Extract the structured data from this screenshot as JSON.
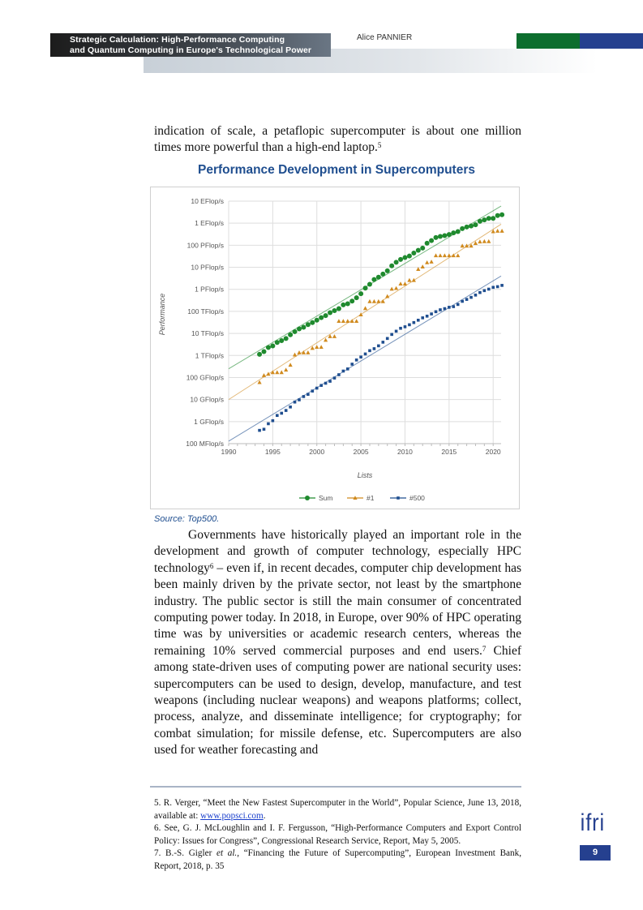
{
  "header": {
    "title_line1": "Strategic Calculation: High-Performance Computing",
    "title_line2": "and Quantum Computing in Europe's Technological Power",
    "author": "Alice PANNIER",
    "colors": {
      "green": "#0d6e2e",
      "blue": "#25408f"
    }
  },
  "intro_paragraph": "indication of scale, a petaflopic supercomputer is about one million times more powerful than a high-end laptop.",
  "intro_footnote_ref": "5",
  "figure": {
    "title": "Performance Development in Supercomputers",
    "source": "Source: Top500."
  },
  "chart_data": {
    "type": "scatter",
    "title": "Performance Development in Supercomputers",
    "xlabel": "Lists",
    "ylabel": "Performance",
    "xlim": [
      1990,
      2021
    ],
    "x_ticks": [
      "1990",
      "1995",
      "2000",
      "2005",
      "2010",
      "2015",
      "2020"
    ],
    "y_scale": "log10 (TFlop/s)",
    "ylim_tflops": [
      0.0001,
      10000000
    ],
    "y_ticks": [
      "10 EFlop/s",
      "1 EFlop/s",
      "100 PFlop/s",
      "10 PFlop/s",
      "1 PFlop/s",
      "100 TFlop/s",
      "10 TFlop/s",
      "1 TFlop/s",
      "100 GFlop/s",
      "10 GFlop/s",
      "1 GFlop/s",
      "100 MFlop/s"
    ],
    "grid": true,
    "legend_position": "bottom",
    "x_start": 1993.5,
    "x_step": 0.5,
    "series": [
      {
        "name": "Sum",
        "color": "#1f8a2e",
        "marker": "circle",
        "values_tflops": [
          1.13,
          1.5,
          2.3,
          2.7,
          3.9,
          4.7,
          5.9,
          8.7,
          12,
          16,
          19,
          25,
          31,
          40,
          52,
          64,
          87,
          108,
          134,
          197,
          223,
          291,
          413,
          630,
          1130,
          1690,
          2790,
          3540,
          4920,
          6960,
          11700,
          16950,
          22600,
          27600,
          32400,
          44200,
          58900,
          74200,
          123000,
          162000,
          223000,
          250000,
          274000,
          308000,
          363000,
          418000,
          567000,
          672000,
          749000,
          845000,
          1220000,
          1410000,
          1650000,
          1650000,
          2220000,
          2430000
        ],
        "trend_tflops": [
          0.25,
          6000000
        ]
      },
      {
        "name": "#1",
        "color": "#d08a1e",
        "marker": "triangle",
        "values_tflops": [
          0.0597,
          0.124,
          0.143,
          0.17,
          0.17,
          0.17,
          0.22,
          0.368,
          1.07,
          1.34,
          1.34,
          1.34,
          2.12,
          2.38,
          2.38,
          4.94,
          7.23,
          7.23,
          35.9,
          35.9,
          35.9,
          35.9,
          35.9,
          70.7,
          136.8,
          280.6,
          280.6,
          280.6,
          280.6,
          478,
          1026,
          1105,
          1759,
          1759,
          2566,
          2566,
          8162,
          10510,
          16320,
          17590,
          33860,
          33860,
          33860,
          33860,
          33860,
          33860,
          93010,
          93010,
          93010,
          122300,
          143500,
          148600,
          148600,
          415500,
          442000,
          442000
        ],
        "trend_tflops": [
          0.01,
          900000
        ]
      },
      {
        "name": "#500",
        "color": "#1f4e8f",
        "marker": "square",
        "values_tflops": [
          0.0004,
          0.00045,
          0.0008,
          0.0011,
          0.0019,
          0.0024,
          0.0032,
          0.0046,
          0.0077,
          0.0097,
          0.0137,
          0.0172,
          0.0243,
          0.033,
          0.0437,
          0.055,
          0.0677,
          0.0945,
          0.134,
          0.196,
          0.245,
          0.403,
          0.624,
          0.85,
          1.17,
          1.65,
          2.03,
          2.74,
          4.0,
          5.9,
          9.0,
          12.6,
          17.1,
          20.0,
          24.7,
          31.1,
          39.8,
          50.9,
          60.8,
          76.5,
          96.6,
          118,
          133,
          153,
          164,
          206,
          286,
          349,
          432,
          548,
          715,
          874,
          1020,
          1230,
          1320,
          1510
        ],
        "trend_tflops": [
          0.00013,
          4000
        ]
      }
    ]
  },
  "body_paragraph": {
    "part1": "Governments have historically played an important role in the development and growth of computer technology, especially HPC technology",
    "ref1": "6",
    "part2": " – even if, in recent decades, computer chip development has been mainly driven by the private sector, not least by the smartphone industry. The public sector is still the main consumer of concentrated computing power today. In 2018, in Europe, over 90% of HPC operating time was by universities or academic research centers, whereas the remaining 10% served commercial purposes and end users.",
    "ref2": "7",
    "part3": " Chief among state-driven uses of computing power are national security uses: supercomputers can be used to design, develop, manufacture, and test weapons (including nuclear weapons) and weapons platforms; collect, process, analyze, and disseminate intelligence; for cryptography; for combat simulation; for missile defense, etc. Supercomputers are also used for weather forecasting and"
  },
  "footnotes": {
    "fn5_text": "5. R. Verger, “Meet the New Fastest Supercomputer in the World”, Popular Science, June 13, 2018, available at: ",
    "fn5_link": "www.popsci.com",
    "fn6": "6. See, G. J. McLoughlin and I. F. Fergusson, “High-Performance Computers and Export Control Policy: Issues for Congress”, Congressional Research Service, Report, May 5, 2005.",
    "fn7_a": "7. B.-S. Gigler ",
    "fn7_italic": "et al.",
    "fn7_b": ", “Financing the Future of Supercomputing”, European Investment Bank, Report, 2018, p. 35"
  },
  "footer": {
    "logo": "ifri",
    "page_number": "9"
  }
}
